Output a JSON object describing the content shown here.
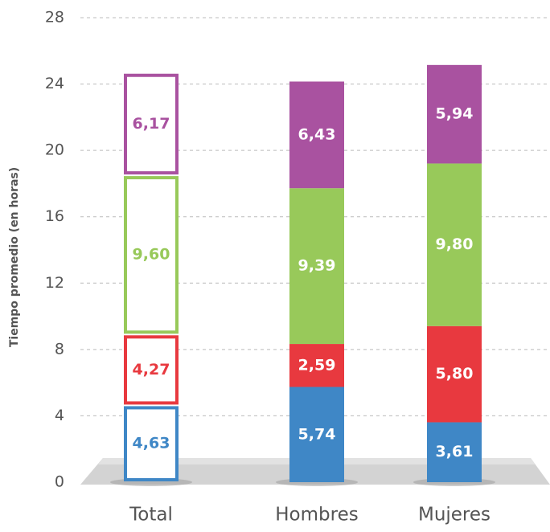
{
  "chart_data": {
    "type": "stacked_bar",
    "y_label": "Tiempo promedio (en horas)",
    "categories": [
      "Total",
      "Hombres",
      "Mujeres"
    ],
    "outlined": [
      true,
      false,
      false
    ],
    "series": [
      {
        "color": "#3f87c6",
        "values": [
          4.63,
          5.74,
          3.61
        ],
        "value_labels": [
          "4,63",
          "5,74",
          "3,61"
        ]
      },
      {
        "color": "#e8393f",
        "values": [
          4.27,
          2.59,
          5.8
        ],
        "value_labels": [
          "4,27",
          "2,59",
          "5,80"
        ]
      },
      {
        "color": "#98c95a",
        "values": [
          9.6,
          9.39,
          9.8
        ],
        "value_labels": [
          "9,60",
          "9,39",
          "9,80"
        ]
      },
      {
        "color": "#a952a0",
        "values": [
          6.17,
          6.43,
          5.94
        ],
        "value_labels": [
          "6,17",
          "6,43",
          "5,94"
        ]
      }
    ],
    "ylim": [
      0,
      28
    ],
    "yticks": [
      0,
      4,
      8,
      12,
      16,
      20,
      24,
      28
    ],
    "grid": true
  }
}
